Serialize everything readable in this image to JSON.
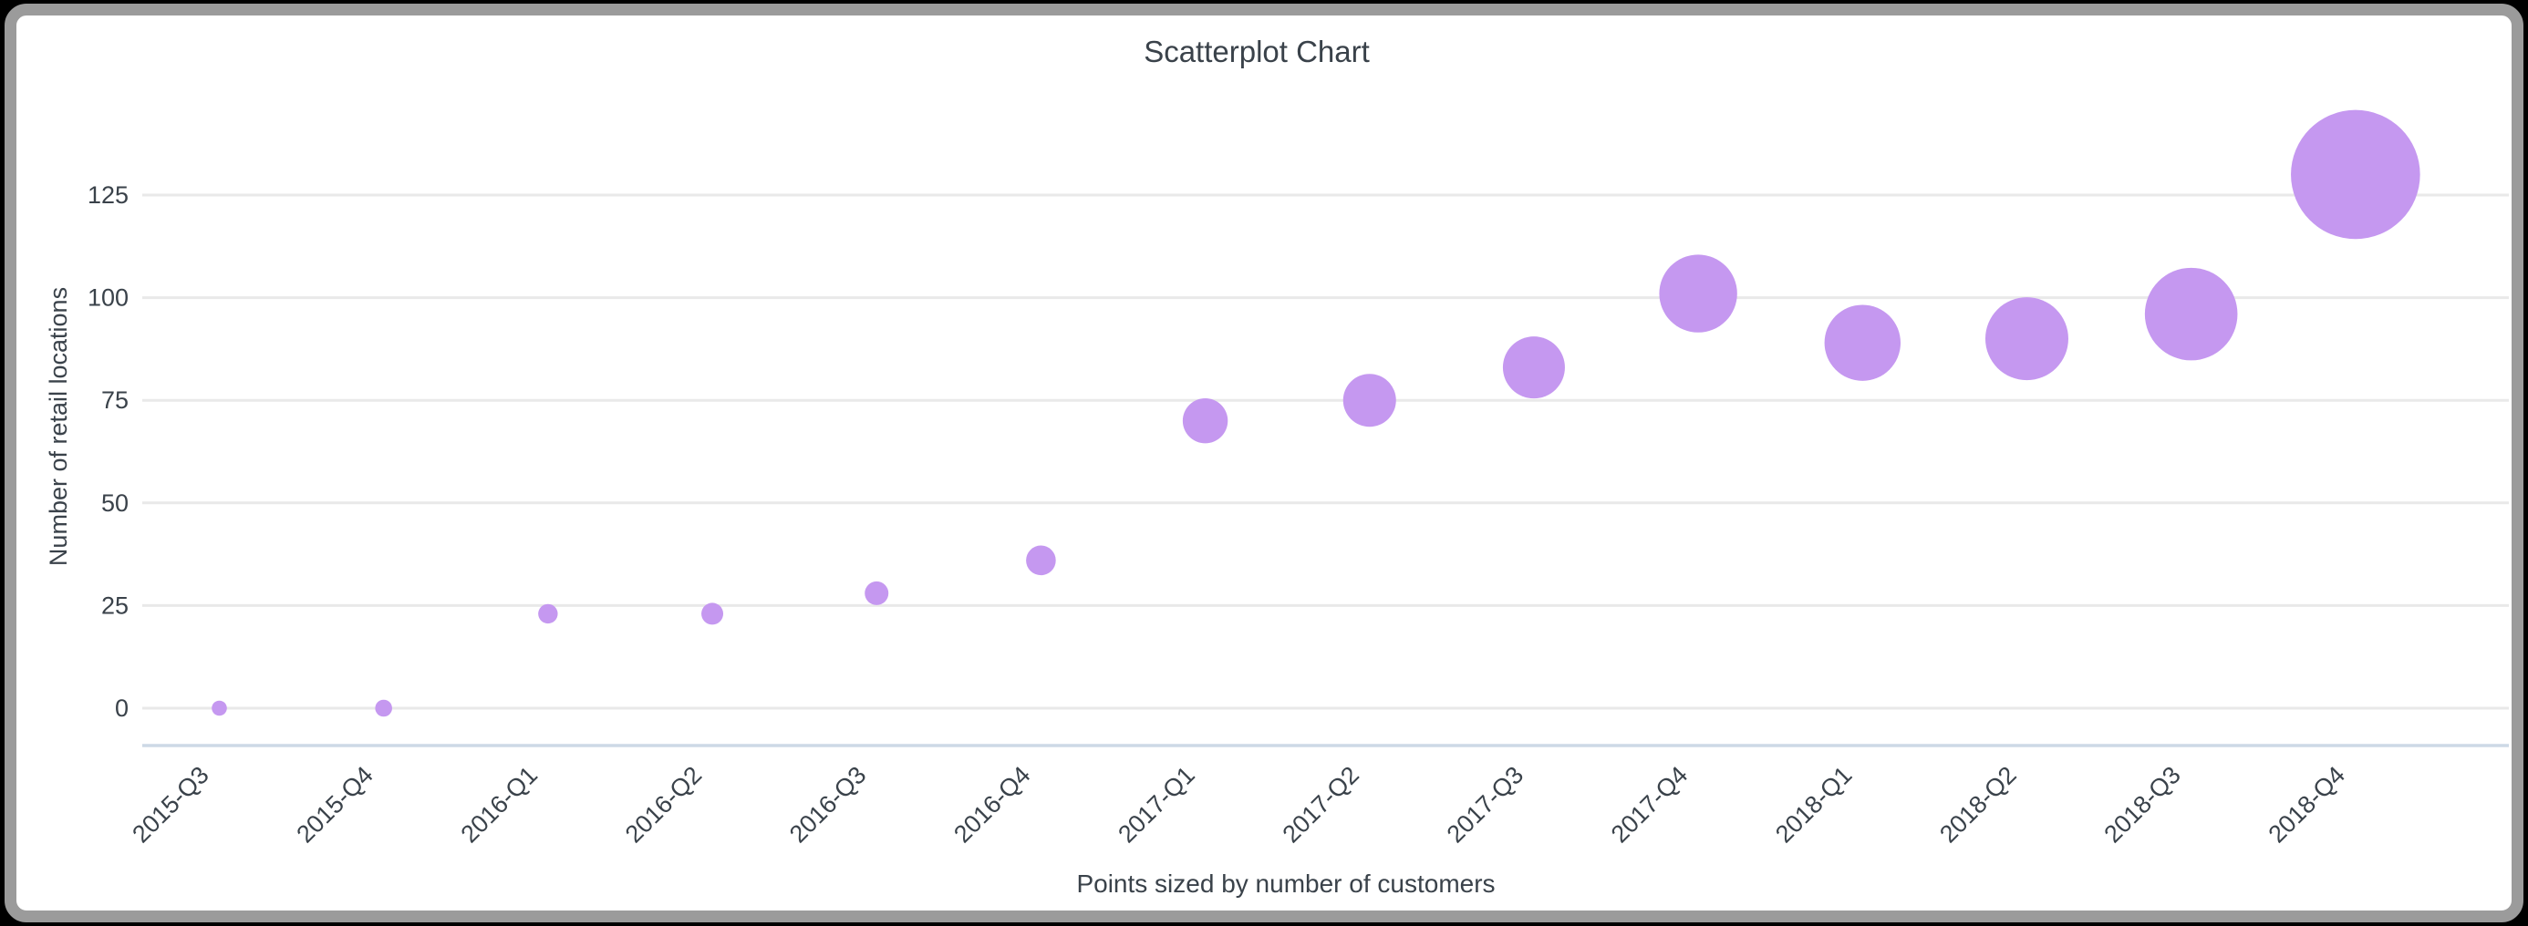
{
  "window": {
    "background_color": "#000000",
    "frame_border_color": "#9b9b9b",
    "card_background": "#ffffff"
  },
  "chart_data": {
    "type": "scatter",
    "subtype": "bubble",
    "title": "Scatterplot Chart",
    "ylabel": "Number of retail locations",
    "caption": "Points sized by number of customers",
    "categories": [
      "2015-Q3",
      "2015-Q4",
      "2016-Q1",
      "2016-Q2",
      "2016-Q3",
      "2016-Q4",
      "2017-Q1",
      "2017-Q2",
      "2017-Q3",
      "2017-Q4",
      "2018-Q1",
      "2018-Q2",
      "2018-Q3",
      "2018-Q4"
    ],
    "series": [
      {
        "name": "Number of retail locations",
        "values": [
          0,
          0,
          23,
          23,
          28,
          36,
          70,
          75,
          83,
          101,
          89,
          90,
          96,
          130
        ],
        "point_radius_px": [
          8.3,
          9.3,
          10.7,
          12,
          13,
          16.3,
          24.7,
          29,
          34,
          42.7,
          41.7,
          45.5,
          50.8,
          70.8
        ]
      }
    ],
    "yticks": [
      0,
      25,
      50,
      75,
      100,
      125
    ],
    "ylim": [
      0,
      137
    ],
    "grid": true,
    "legend_position": "none",
    "x_tick_rotation_deg": -45,
    "point_color": "#c598f0",
    "gridline_color": "#e9e9e9",
    "axis_line_color": "#cdd9e6",
    "text_color": "#3a424a"
  }
}
